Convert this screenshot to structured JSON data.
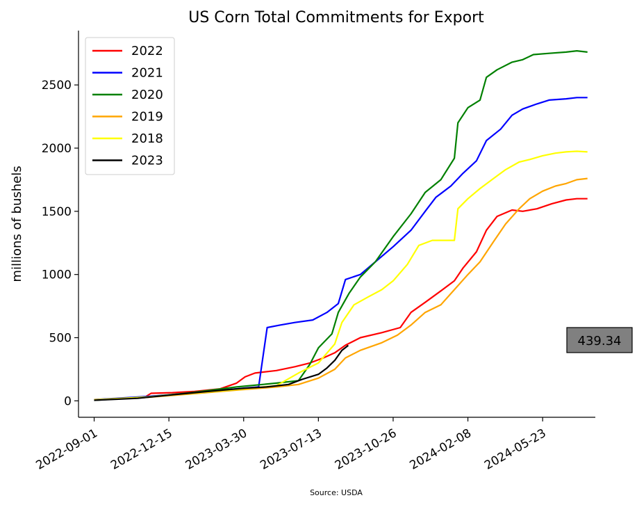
{
  "chart_data": {
    "type": "line",
    "title": "US Corn Total Commitments for Export",
    "ylabel": "millions of bushels",
    "xlabel": "",
    "source": "Source: USDA",
    "ylim": [
      -130,
      2930
    ],
    "xlim": [
      "2022-08-10",
      "2024-08-05"
    ],
    "yticks": [
      0,
      500,
      1000,
      1500,
      2000,
      2500
    ],
    "xticks": [
      "2022-09-01",
      "2022-12-15",
      "2023-03-30",
      "2023-07-13",
      "2023-10-26",
      "2024-02-08",
      "2024-05-23"
    ],
    "grid": false,
    "legend_position": "top-left",
    "annotation": {
      "text": "439.34",
      "y": 439.34
    },
    "series": [
      {
        "name": "2022",
        "color": "#ff0000",
        "points": [
          [
            "2022-09-01",
            10
          ],
          [
            "2022-11-10",
            25
          ],
          [
            "2022-11-20",
            60
          ],
          [
            "2022-12-20",
            65
          ],
          [
            "2023-01-20",
            75
          ],
          [
            "2023-02-25",
            95
          ],
          [
            "2023-03-20",
            140
          ],
          [
            "2023-04-01",
            190
          ],
          [
            "2023-04-15",
            220
          ],
          [
            "2023-05-15",
            240
          ],
          [
            "2023-06-10",
            270
          ],
          [
            "2023-07-01",
            300
          ],
          [
            "2023-07-20",
            340
          ],
          [
            "2023-08-05",
            380
          ],
          [
            "2023-08-20",
            440
          ],
          [
            "2023-09-10",
            500
          ],
          [
            "2023-10-10",
            540
          ],
          [
            "2023-11-05",
            580
          ],
          [
            "2023-11-20",
            700
          ],
          [
            "2023-12-10",
            780
          ],
          [
            "2024-01-01",
            870
          ],
          [
            "2024-01-20",
            950
          ],
          [
            "2024-02-01",
            1050
          ],
          [
            "2024-02-20",
            1180
          ],
          [
            "2024-03-05",
            1350
          ],
          [
            "2024-03-20",
            1460
          ],
          [
            "2024-04-10",
            1510
          ],
          [
            "2024-04-25",
            1500
          ],
          [
            "2024-05-15",
            1520
          ],
          [
            "2024-06-05",
            1560
          ],
          [
            "2024-06-25",
            1590
          ],
          [
            "2024-07-10",
            1600
          ],
          [
            "2024-07-25",
            1600
          ]
        ]
      },
      {
        "name": "2021",
        "color": "#0000ff",
        "points": [
          [
            "2022-09-01",
            10
          ],
          [
            "2022-11-15",
            35
          ],
          [
            "2023-01-15",
            60
          ],
          [
            "2023-03-10",
            90
          ],
          [
            "2023-04-20",
            110
          ],
          [
            "2023-05-02",
            580
          ],
          [
            "2023-05-20",
            600
          ],
          [
            "2023-06-10",
            620
          ],
          [
            "2023-07-05",
            640
          ],
          [
            "2023-07-25",
            700
          ],
          [
            "2023-08-10",
            770
          ],
          [
            "2023-08-20",
            960
          ],
          [
            "2023-09-10",
            1000
          ],
          [
            "2023-10-01",
            1100
          ],
          [
            "2023-10-26",
            1220
          ],
          [
            "2023-11-20",
            1350
          ],
          [
            "2023-12-10",
            1500
          ],
          [
            "2023-12-25",
            1610
          ],
          [
            "2024-01-15",
            1700
          ],
          [
            "2024-02-01",
            1800
          ],
          [
            "2024-02-20",
            1900
          ],
          [
            "2024-03-05",
            2060
          ],
          [
            "2024-03-25",
            2150
          ],
          [
            "2024-04-10",
            2260
          ],
          [
            "2024-04-25",
            2310
          ],
          [
            "2024-05-15",
            2350
          ],
          [
            "2024-06-01",
            2380
          ],
          [
            "2024-06-25",
            2390
          ],
          [
            "2024-07-10",
            2400
          ],
          [
            "2024-07-25",
            2400
          ]
        ]
      },
      {
        "name": "2020",
        "color": "#008000",
        "points": [
          [
            "2022-09-01",
            5
          ],
          [
            "2022-11-15",
            30
          ],
          [
            "2023-01-15",
            65
          ],
          [
            "2023-03-20",
            110
          ],
          [
            "2023-05-15",
            140
          ],
          [
            "2023-06-15",
            160
          ],
          [
            "2023-07-01",
            290
          ],
          [
            "2023-07-13",
            420
          ],
          [
            "2023-08-01",
            530
          ],
          [
            "2023-08-10",
            700
          ],
          [
            "2023-08-25",
            850
          ],
          [
            "2023-09-10",
            980
          ],
          [
            "2023-10-01",
            1100
          ],
          [
            "2023-10-26",
            1300
          ],
          [
            "2023-11-20",
            1480
          ],
          [
            "2023-12-10",
            1650
          ],
          [
            "2024-01-01",
            1750
          ],
          [
            "2024-01-20",
            1920
          ],
          [
            "2024-01-25",
            2200
          ],
          [
            "2024-02-08",
            2320
          ],
          [
            "2024-02-25",
            2380
          ],
          [
            "2024-03-05",
            2560
          ],
          [
            "2024-03-20",
            2620
          ],
          [
            "2024-04-10",
            2680
          ],
          [
            "2024-04-25",
            2700
          ],
          [
            "2024-05-10",
            2740
          ],
          [
            "2024-06-01",
            2750
          ],
          [
            "2024-06-25",
            2760
          ],
          [
            "2024-07-10",
            2770
          ],
          [
            "2024-07-25",
            2760
          ]
        ]
      },
      {
        "name": "2019",
        "color": "#ffa500",
        "points": [
          [
            "2022-09-01",
            8
          ],
          [
            "2022-11-15",
            28
          ],
          [
            "2023-01-15",
            55
          ],
          [
            "2023-03-20",
            85
          ],
          [
            "2023-05-15",
            110
          ],
          [
            "2023-06-15",
            130
          ],
          [
            "2023-07-13",
            180
          ],
          [
            "2023-08-05",
            250
          ],
          [
            "2023-08-20",
            340
          ],
          [
            "2023-09-10",
            400
          ],
          [
            "2023-10-10",
            460
          ],
          [
            "2023-11-01",
            520
          ],
          [
            "2023-11-20",
            600
          ],
          [
            "2023-12-10",
            700
          ],
          [
            "2024-01-01",
            760
          ],
          [
            "2024-01-20",
            880
          ],
          [
            "2024-02-08",
            1000
          ],
          [
            "2024-02-25",
            1100
          ],
          [
            "2024-03-15",
            1260
          ],
          [
            "2024-04-01",
            1400
          ],
          [
            "2024-04-20",
            1520
          ],
          [
            "2024-05-05",
            1600
          ],
          [
            "2024-05-23",
            1660
          ],
          [
            "2024-06-10",
            1700
          ],
          [
            "2024-06-25",
            1720
          ],
          [
            "2024-07-10",
            1750
          ],
          [
            "2024-07-25",
            1760
          ]
        ]
      },
      {
        "name": "2018",
        "color": "#ffff00",
        "points": [
          [
            "2022-09-01",
            8
          ],
          [
            "2022-11-15",
            30
          ],
          [
            "2023-01-15",
            60
          ],
          [
            "2023-03-20",
            90
          ],
          [
            "2023-05-15",
            120
          ],
          [
            "2023-06-15",
            220
          ],
          [
            "2023-07-13",
            300
          ],
          [
            "2023-08-05",
            450
          ],
          [
            "2023-08-15",
            620
          ],
          [
            "2023-09-01",
            760
          ],
          [
            "2023-09-20",
            820
          ],
          [
            "2023-10-10",
            880
          ],
          [
            "2023-10-26",
            950
          ],
          [
            "2023-11-15",
            1080
          ],
          [
            "2023-12-01",
            1230
          ],
          [
            "2023-12-20",
            1270
          ],
          [
            "2024-01-10",
            1270
          ],
          [
            "2024-01-20",
            1270
          ],
          [
            "2024-01-25",
            1520
          ],
          [
            "2024-02-08",
            1600
          ],
          [
            "2024-02-25",
            1680
          ],
          [
            "2024-03-15",
            1760
          ],
          [
            "2024-04-01",
            1830
          ],
          [
            "2024-04-20",
            1890
          ],
          [
            "2024-05-05",
            1910
          ],
          [
            "2024-05-23",
            1940
          ],
          [
            "2024-06-10",
            1960
          ],
          [
            "2024-06-25",
            1970
          ],
          [
            "2024-07-10",
            1975
          ],
          [
            "2024-07-25",
            1970
          ]
        ]
      },
      {
        "name": "2023",
        "color": "#000000",
        "points": [
          [
            "2022-09-01",
            5
          ],
          [
            "2022-11-01",
            20
          ],
          [
            "2022-12-15",
            45
          ],
          [
            "2023-01-20",
            65
          ],
          [
            "2023-03-01",
            85
          ],
          [
            "2023-04-01",
            100
          ],
          [
            "2023-05-01",
            110
          ],
          [
            "2023-06-01",
            130
          ],
          [
            "2023-06-20",
            170
          ],
          [
            "2023-07-13",
            210
          ],
          [
            "2023-07-25",
            260
          ],
          [
            "2023-08-05",
            320
          ],
          [
            "2023-08-15",
            400
          ],
          [
            "2023-08-24",
            439.34
          ]
        ]
      }
    ]
  }
}
